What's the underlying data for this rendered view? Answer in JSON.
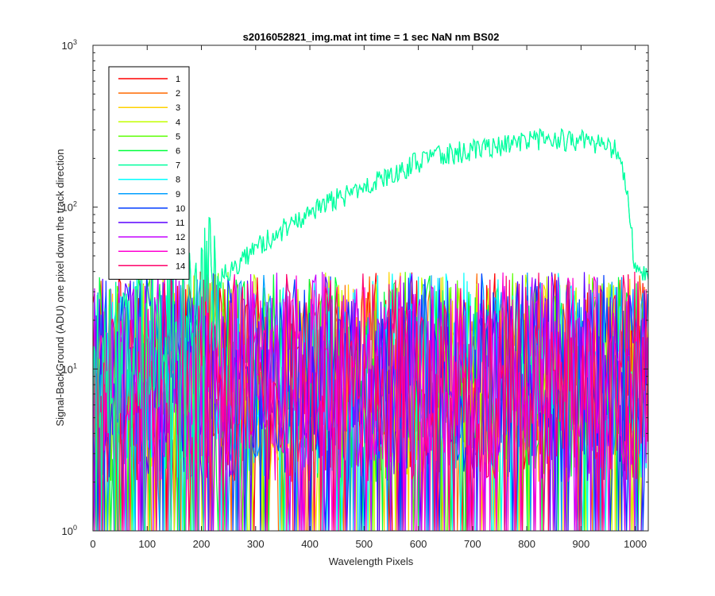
{
  "chart_data": {
    "type": "line",
    "title": "s2016052821_img.mat int time = 1 sec  NaN nm BS02",
    "xlabel": "Wavelength Pixels",
    "ylabel": "Signal-BackGround (ADU) one pixel down the track direction",
    "xlim": [
      0,
      1024
    ],
    "ylim": [
      1,
      1000
    ],
    "yscale": "log",
    "grid": false,
    "legend_position": "top-left",
    "x_ticks": [
      "0",
      "100",
      "200",
      "300",
      "400",
      "500",
      "600",
      "700",
      "800",
      "900",
      "1000"
    ],
    "x_tick_values": [
      0,
      100,
      200,
      300,
      400,
      500,
      600,
      700,
      800,
      900,
      1000
    ],
    "y_ticks": [
      {
        "base": "10",
        "exp": "0",
        "value": 1
      },
      {
        "base": "10",
        "exp": "1",
        "value": 10
      },
      {
        "base": "10",
        "exp": "2",
        "value": 100
      },
      {
        "base": "10",
        "exp": "3",
        "value": 1000
      }
    ],
    "series": [
      {
        "name": "1",
        "color": "#ff0000",
        "profile": "noise"
      },
      {
        "name": "2",
        "color": "#ff6a00",
        "profile": "noise"
      },
      {
        "name": "3",
        "color": "#ffd200",
        "profile": "noise"
      },
      {
        "name": "4",
        "color": "#c3ff00",
        "profile": "noise"
      },
      {
        "name": "5",
        "color": "#5aff00",
        "profile": "noise"
      },
      {
        "name": "6",
        "color": "#00ff3c",
        "profile": "noise"
      },
      {
        "name": "7",
        "color": "#00ff9f",
        "profile": "signal",
        "envelope_x": [
          0,
          100,
          150,
          200,
          250,
          300,
          350,
          400,
          450,
          500,
          550,
          600,
          650,
          700,
          750,
          800,
          850,
          900,
          950,
          965,
          985,
          1000,
          1024
        ],
        "envelope_y": [
          10,
          14,
          20,
          28,
          40,
          55,
          72,
          92,
          112,
          135,
          160,
          190,
          210,
          225,
          240,
          255,
          265,
          255,
          240,
          225,
          130,
          40,
          40
        ]
      },
      {
        "name": "8",
        "color": "#00ffff",
        "profile": "noise"
      },
      {
        "name": "9",
        "color": "#009fff",
        "profile": "noise"
      },
      {
        "name": "10",
        "color": "#003cff",
        "profile": "noise"
      },
      {
        "name": "11",
        "color": "#5a00ff",
        "profile": "noise"
      },
      {
        "name": "12",
        "color": "#c300ff",
        "profile": "noise"
      },
      {
        "name": "13",
        "color": "#ff00d2",
        "profile": "noise"
      },
      {
        "name": "14",
        "color": "#ff006a",
        "profile": "noise"
      }
    ]
  }
}
